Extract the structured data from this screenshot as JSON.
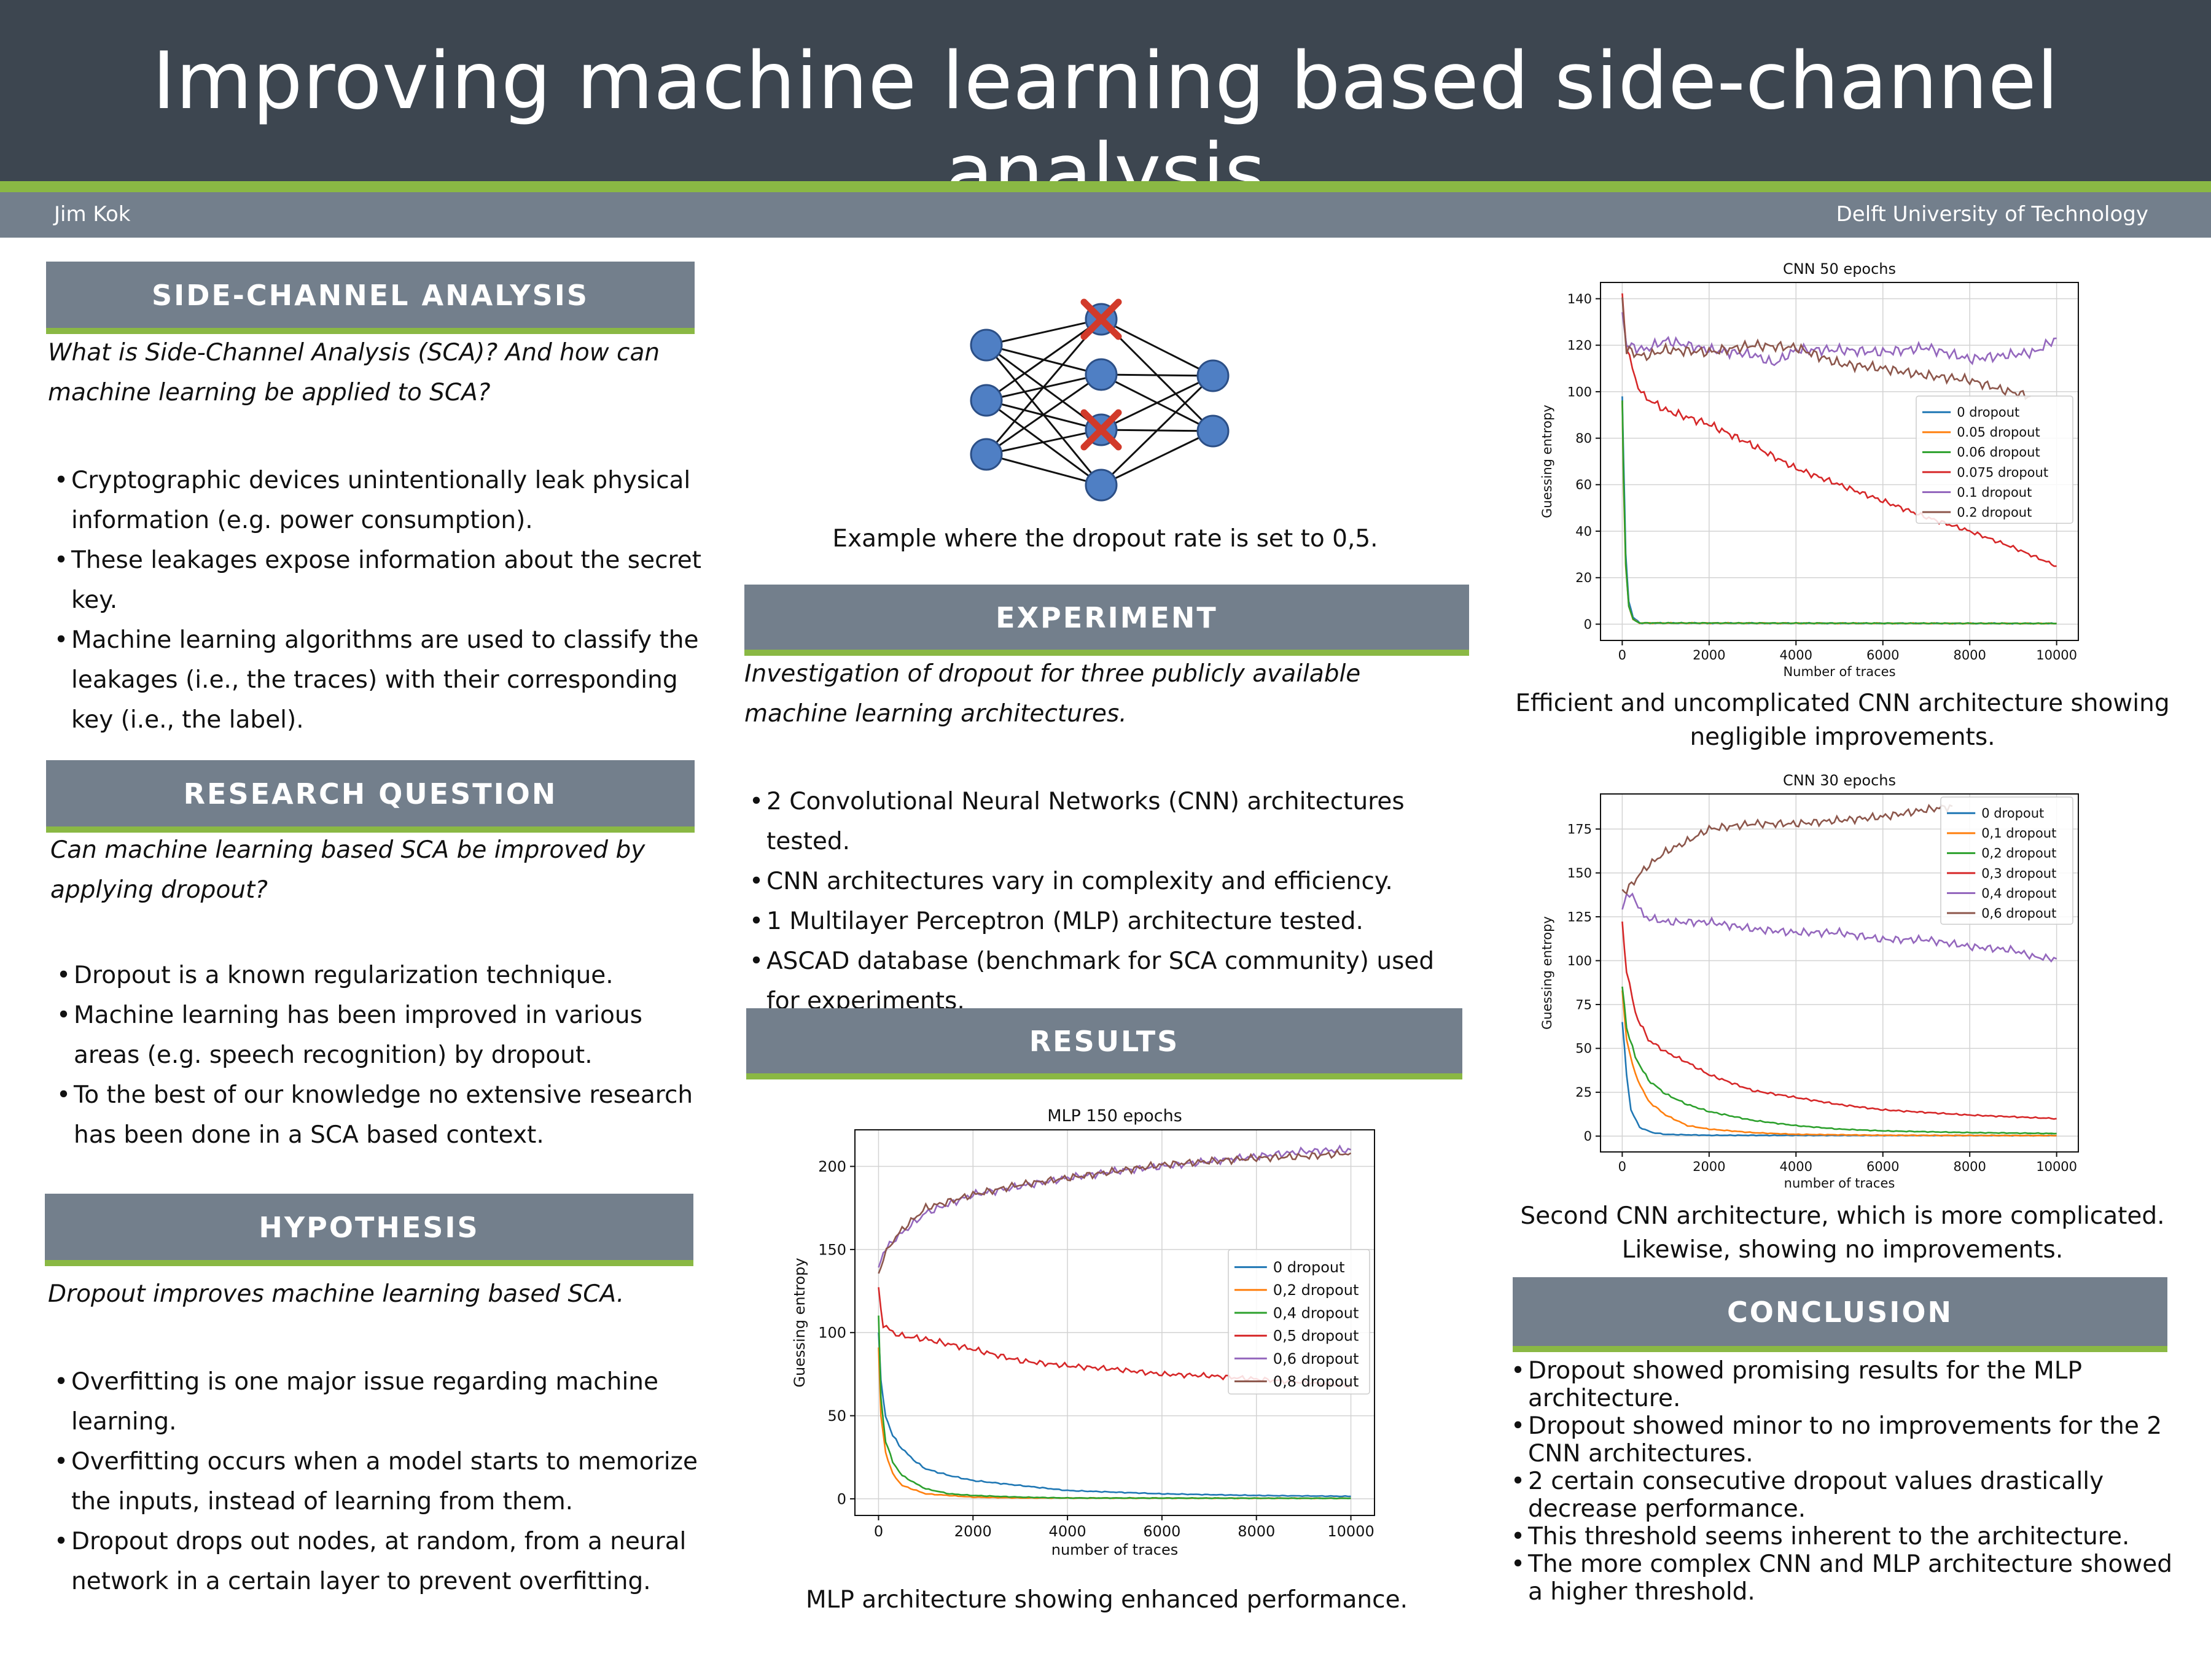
{
  "header": {
    "title": "Improving machine learning based side-channel analysis",
    "author": "Jim Kok",
    "affiliation": "Delft University of Technology"
  },
  "sections": {
    "sca": {
      "heading": "SIDE-CHANNEL ANALYSIS",
      "question": "What is Side-Channel Analysis (SCA)?  And how can machine learning be applied to SCA?",
      "bullets": [
        "Cryptographic devices unintentionally leak physical information (e.g. power consumption).",
        "These leakages expose information about the secret key.",
        "Machine learning algorithms are used to classify the leakages (i.e., the traces) with  their corresponding key (i.e., the label)."
      ]
    },
    "rq": {
      "heading": "RESEARCH QUESTION",
      "question": "Can machine learning based SCA be improved by applying dropout?",
      "bullets": [
        "Dropout is a known regularization technique.",
        "Machine learning  has been improved in various areas (e.g. speech recognition) by dropout.",
        "To the best of our knowledge no extensive research has been done in a SCA based context."
      ]
    },
    "hyp": {
      "heading": "HYPOTHESIS",
      "statement": "Dropout improves machine learning based SCA.",
      "bullets": [
        "Overfitting is one major issue regarding machine learning.",
        "Overfitting occurs when  a  model  starts  to  memorize the  inputs,  instead  of  learning  from  them.",
        "Dropout drops out nodes, at random, from a neural network in a certain layer to prevent overfitting."
      ]
    },
    "nn": {
      "caption": "Example where the dropout rate is set to 0,5."
    },
    "exp": {
      "heading": "EXPERIMENT",
      "statement": "Investigation of dropout for three publicly available machine learning architectures.",
      "bullets": [
        "2 Convolutional Neural Networks (CNN) architectures tested.",
        "CNN architectures vary in complexity and efficiency.",
        "1 Multilayer Perceptron (MLP) architecture tested.",
        "ASCAD database (benchmark for SCA community) used for experiments."
      ]
    },
    "res": {
      "heading": "RESULTS",
      "caption": "MLP architecture showing enhanced performance."
    },
    "cnn50": {
      "caption": "Efficient and uncomplicated CNN architecture showing negligible improvements."
    },
    "cnn30": {
      "caption": "Second CNN architecture, which is more complicated. Likewise, showing no improvements."
    },
    "concl": {
      "heading": "CONCLUSION",
      "bullets": [
        "Dropout showed promising results for the MLP architecture.",
        "Dropout showed minor to no improvements for the 2 CNN architectures.",
        "2 certain consecutive dropout values drastically decrease performance.",
        "This threshold seems inherent to the architecture.",
        "The more complex CNN and MLP architecture showed a higher threshold."
      ]
    }
  },
  "chart_data": [
    {
      "id": "cnn50",
      "type": "line",
      "title": "CNN 50 epochs",
      "xlabel": "Number of traces",
      "ylabel": "Guessing entropy",
      "xlim": [
        -500,
        10500
      ],
      "ylim": [
        -7,
        147
      ],
      "xticks": [
        0,
        2000,
        4000,
        6000,
        8000,
        10000
      ],
      "yticks": [
        0,
        20,
        40,
        60,
        80,
        100,
        120,
        140
      ],
      "grid": true,
      "legend": "center-right",
      "series": [
        {
          "name": "0 dropout",
          "color": "#1f77b4",
          "x": [
            0,
            30,
            80,
            150,
            250,
            400,
            10000
          ],
          "y": [
            98,
            70,
            30,
            10,
            3,
            0.5,
            0.3
          ]
        },
        {
          "name": "0.05 dropout",
          "color": "#ff7f0e",
          "x": [
            0,
            30,
            80,
            150,
            250,
            400,
            10000
          ],
          "y": [
            95,
            60,
            25,
            8,
            2,
            0.5,
            0.3
          ]
        },
        {
          "name": "0.06 dropout",
          "color": "#2ca02c",
          "x": [
            0,
            30,
            80,
            150,
            250,
            400,
            10000
          ],
          "y": [
            96,
            62,
            26,
            8,
            2,
            0.5,
            0.3
          ]
        },
        {
          "name": "0.075 dropout",
          "color": "#d62728",
          "x": [
            0,
            100,
            300,
            500,
            1000,
            2000,
            3000,
            4000,
            5000,
            6000,
            7000,
            8000,
            9000,
            10000
          ],
          "y": [
            140,
            120,
            105,
            98,
            92,
            86,
            77,
            67,
            60,
            53,
            46,
            40,
            33,
            25
          ]
        },
        {
          "name": "0.1 dropout",
          "color": "#9467bd",
          "x": [
            0,
            100,
            500,
            1000,
            2000,
            3000,
            3500,
            4000,
            5000,
            6000,
            7000,
            8000,
            9000,
            9500,
            10000
          ],
          "y": [
            135,
            120,
            118,
            122,
            118,
            116,
            112,
            118,
            118,
            117,
            119,
            114,
            116,
            117,
            123
          ]
        },
        {
          "name": "0.2 dropout",
          "color": "#8c564b",
          "x": [
            0,
            100,
            500,
            1000,
            2000,
            3000,
            4000,
            5000,
            6000,
            7000,
            8000,
            8700,
            9400
          ],
          "y": [
            140,
            118,
            115,
            118,
            117,
            120,
            119,
            112,
            110,
            107,
            105,
            101,
            98
          ]
        }
      ]
    },
    {
      "id": "cnn30",
      "type": "line",
      "title": "CNN 30 epochs",
      "xlabel": "number of traces",
      "ylabel": "Guessing entropy",
      "xlim": [
        -500,
        10500
      ],
      "ylim": [
        -9,
        195
      ],
      "xticks": [
        0,
        2000,
        4000,
        6000,
        8000,
        10000
      ],
      "yticks": [
        0,
        25,
        50,
        75,
        100,
        125,
        150,
        175
      ],
      "grid": true,
      "legend": "top-right",
      "series": [
        {
          "name": "0 dropout",
          "color": "#1f77b4",
          "x": [
            0,
            100,
            200,
            400,
            700,
            1000,
            2000,
            10000
          ],
          "y": [
            65,
            35,
            15,
            5,
            2,
            1,
            0.5,
            0.3
          ]
        },
        {
          "name": "0,1 dropout",
          "color": "#ff7f0e",
          "x": [
            0,
            100,
            300,
            600,
            1000,
            1500,
            2000,
            3000,
            4000,
            6000,
            10000
          ],
          "y": [
            82,
            55,
            35,
            20,
            12,
            6,
            4,
            2,
            1,
            0.5,
            0.3
          ]
        },
        {
          "name": "0,2 dropout",
          "color": "#2ca02c",
          "x": [
            0,
            100,
            300,
            600,
            1000,
            1500,
            2000,
            3000,
            4000,
            5000,
            6000,
            8000,
            10000
          ],
          "y": [
            85,
            62,
            45,
            32,
            24,
            18,
            14,
            9,
            6,
            4,
            3,
            2,
            1.5
          ]
        },
        {
          "name": "0,3 dropout",
          "color": "#d62728",
          "x": [
            0,
            100,
            300,
            600,
            1000,
            1500,
            2000,
            3000,
            4000,
            5000,
            6000,
            8000,
            10000
          ],
          "y": [
            120,
            95,
            70,
            55,
            48,
            42,
            35,
            26,
            22,
            18,
            15,
            12,
            10
          ]
        },
        {
          "name": "0,4 dropout",
          "color": "#9467bd",
          "x": [
            0,
            100,
            300,
            500,
            1000,
            2000,
            3000,
            4000,
            5000,
            6000,
            7000,
            8000,
            9000,
            9500,
            10000
          ],
          "y": [
            130,
            138,
            135,
            125,
            122,
            122,
            118,
            116,
            116,
            112,
            112,
            108,
            106,
            102,
            101
          ]
        },
        {
          "name": "0,6 dropout",
          "color": "#8c564b",
          "x": [
            0,
            100,
            500,
            1000,
            1500,
            2000,
            3000,
            4000,
            5000,
            6000,
            7000,
            7600
          ],
          "y": [
            140,
            140,
            152,
            162,
            168,
            175,
            178,
            178,
            180,
            182,
            186,
            188
          ]
        }
      ]
    },
    {
      "id": "mlp150",
      "type": "line",
      "title": "MLP 150 epochs",
      "xlabel": "number of traces",
      "ylabel": "Guessing entropy",
      "xlim": [
        -500,
        10500
      ],
      "ylim": [
        -10,
        222
      ],
      "xticks": [
        0,
        2000,
        4000,
        6000,
        8000,
        10000
      ],
      "yticks": [
        0,
        50,
        100,
        150,
        200
      ],
      "grid": true,
      "legend": "center-right",
      "series": [
        {
          "name": "0 dropout",
          "color": "#1f77b4",
          "x": [
            0,
            50,
            150,
            300,
            500,
            800,
            1000,
            1500,
            2000,
            3000,
            4000,
            6000,
            8000,
            10000
          ],
          "y": [
            100,
            70,
            50,
            38,
            30,
            22,
            18,
            14,
            11,
            8,
            5,
            3,
            2,
            1.5
          ]
        },
        {
          "name": "0,2 dropout",
          "color": "#ff7f0e",
          "x": [
            0,
            50,
            150,
            300,
            500,
            800,
            1000,
            1500,
            2000,
            3000,
            10000
          ],
          "y": [
            90,
            50,
            28,
            15,
            8,
            5,
            3,
            2,
            1,
            0.5,
            0.3
          ]
        },
        {
          "name": "0,4 dropout",
          "color": "#2ca02c",
          "x": [
            0,
            50,
            150,
            300,
            500,
            800,
            1000,
            1500,
            2000,
            3000,
            4000,
            10000
          ],
          "y": [
            110,
            60,
            35,
            22,
            14,
            9,
            6,
            3,
            2,
            1,
            0.5,
            0.3
          ]
        },
        {
          "name": "0,5 dropout",
          "color": "#d62728",
          "x": [
            0,
            100,
            300,
            500,
            1000,
            2000,
            3000,
            4000,
            5000,
            6000,
            7000,
            8000,
            9000,
            10000
          ],
          "y": [
            125,
            105,
            100,
            98,
            96,
            90,
            83,
            80,
            78,
            75,
            74,
            72,
            70,
            68
          ]
        },
        {
          "name": "0,6 dropout",
          "color": "#9467bd",
          "x": [
            0,
            100,
            300,
            500,
            1000,
            2000,
            3000,
            4000,
            5000,
            6000,
            7000,
            8000,
            9000,
            10000
          ],
          "y": [
            140,
            148,
            155,
            160,
            172,
            183,
            188,
            193,
            197,
            200,
            203,
            206,
            209,
            210
          ]
        },
        {
          "name": "0,8 dropout",
          "color": "#8c564b",
          "x": [
            0,
            100,
            300,
            500,
            1000,
            2000,
            3000,
            4000,
            5000,
            6000,
            7000,
            8000,
            9000,
            10000
          ],
          "y": [
            135,
            145,
            155,
            162,
            175,
            183,
            189,
            193,
            197,
            201,
            203,
            205,
            206,
            208
          ]
        }
      ]
    }
  ]
}
